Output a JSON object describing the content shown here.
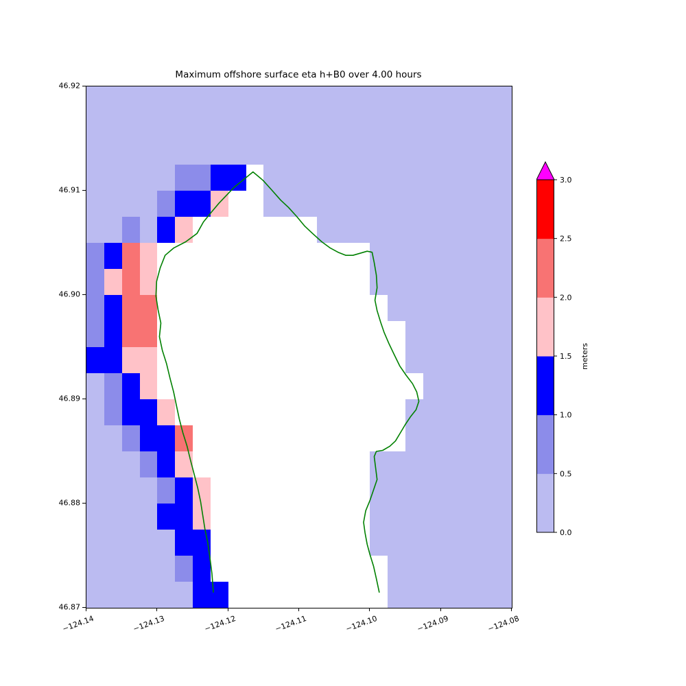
{
  "title": "Maximum offshore surface eta h+B0 over 4.00 hours",
  "chart_data": {
    "type": "heatmap",
    "x_range": [
      -124.14,
      -124.08
    ],
    "y_range": [
      46.87,
      46.92
    ],
    "cell_size_deg": 0.0025,
    "x_ticks": [
      "−124.14",
      "−124.13",
      "−124.12",
      "−124.11",
      "−124.10",
      "−124.09",
      "−124.08"
    ],
    "y_ticks": [
      "46.92",
      "46.91",
      "46.90",
      "46.89",
      "46.88",
      "46.87"
    ],
    "palette": {
      "0": "#bbbbf1",
      "1": "#8c8cea",
      "2": "#0000ff",
      "3": "#ffc2c8",
      "4": "#f87373",
      "5": "#ff0000",
      "W": "#ffffff"
    },
    "bins": [
      {
        "code": "0",
        "range": [
          0.0,
          0.5
        ],
        "color": "#bbbbf1"
      },
      {
        "code": "1",
        "range": [
          0.5,
          1.0
        ],
        "color": "#8c8cea"
      },
      {
        "code": "2",
        "range": [
          1.0,
          1.5
        ],
        "color": "#0000ff"
      },
      {
        "code": "3",
        "range": [
          1.5,
          2.0
        ],
        "color": "#ffc2c8"
      },
      {
        "code": "4",
        "range": [
          2.0,
          2.5
        ],
        "color": "#f87373"
      },
      {
        "code": "5",
        "range": [
          2.5,
          3.0
        ],
        "color": "#ff0000"
      },
      {
        "code": "W",
        "range": null,
        "color": "#ffffff",
        "meaning": "dry land / masked"
      }
    ],
    "grid_codes": [
      "000000000000000000000000",
      "000000000000000000000000",
      "000000000000000000000000",
      "000001122W00000000000000",
      "00001223WW00000000000000",
      "001023WWWWWWW00000000000",
      "1243WWWWWWWWWWWW00000000",
      "1343WWWWWWWWWWWW00000000",
      "1244WWWWWWWWWWWWW0000000",
      "1244WWWWWWWWWWWWWW000000",
      "2233WWWWWWWWWWWWWW000000",
      "0123WWWWWWWWWWWWWWW00000",
      "01223WWWWWWWWWWWWW000000",
      "001224WWWWWWWWWWWW000000",
      "000123WWWWWWWWWW00000000",
      "0000123WWWWWWWWW00000000",
      "0000223WWWWWWWWW00000000",
      "0000022WWWWWWWWW00000000",
      "0000012WWWWWWWWWW0000000",
      "00000022WWWWWWWWW0000000"
    ],
    "coastline_color": "#008000",
    "coastline": [
      [
        -124.1221,
        46.8715
      ],
      [
        -124.1223,
        46.8733
      ],
      [
        -124.1226,
        46.8749
      ],
      [
        -124.1229,
        46.8763
      ],
      [
        -124.1233,
        46.8776
      ],
      [
        -124.1236,
        46.8789
      ],
      [
        -124.1239,
        46.8802
      ],
      [
        -124.1243,
        46.8815
      ],
      [
        -124.1248,
        46.8828
      ],
      [
        -124.1253,
        46.8841
      ],
      [
        -124.1258,
        46.8855
      ],
      [
        -124.1264,
        46.8868
      ],
      [
        -124.1269,
        46.8881
      ],
      [
        -124.1273,
        46.8894
      ],
      [
        -124.1277,
        46.8907
      ],
      [
        -124.1282,
        46.892
      ],
      [
        -124.1287,
        46.8934
      ],
      [
        -124.1293,
        46.8947
      ],
      [
        -124.1297,
        46.896
      ],
      [
        -124.1295,
        46.8973
      ],
      [
        -124.1299,
        46.8986
      ],
      [
        -124.1302,
        46.8999
      ],
      [
        -124.1301,
        46.9013
      ],
      [
        -124.1296,
        46.9026
      ],
      [
        -124.1289,
        46.9038
      ],
      [
        -124.1277,
        46.9045
      ],
      [
        -124.126,
        46.9051
      ],
      [
        -124.1244,
        46.9059
      ],
      [
        -124.1235,
        46.907
      ],
      [
        -124.1223,
        46.908
      ],
      [
        -124.1213,
        46.9088
      ],
      [
        -124.1192,
        46.9103
      ],
      [
        -124.1165,
        46.9118
      ],
      [
        -124.1151,
        46.911
      ],
      [
        -124.1139,
        46.9101
      ],
      [
        -124.1126,
        46.9091
      ],
      [
        -124.1115,
        46.9084
      ],
      [
        -124.1103,
        46.9075
      ],
      [
        -124.1092,
        46.9066
      ],
      [
        -124.1081,
        46.9059
      ],
      [
        -124.1068,
        46.9051
      ],
      [
        -124.1056,
        46.9045
      ],
      [
        -124.1045,
        46.9041
      ],
      [
        -124.1034,
        46.9038
      ],
      [
        -124.1024,
        46.9038
      ],
      [
        -124.1014,
        46.904
      ],
      [
        -124.1004,
        46.9042
      ],
      [
        -124.0997,
        46.9041
      ],
      [
        -124.0994,
        46.9031
      ],
      [
        -124.0991,
        46.9019
      ],
      [
        -124.099,
        46.9007
      ],
      [
        -124.0993,
        46.8995
      ],
      [
        -124.099,
        46.8985
      ],
      [
        -124.0985,
        46.8974
      ],
      [
        -124.098,
        46.8964
      ],
      [
        -124.0973,
        46.8953
      ],
      [
        -124.0966,
        46.8943
      ],
      [
        -124.0958,
        46.8932
      ],
      [
        -124.0949,
        46.8923
      ],
      [
        -124.094,
        46.8915
      ],
      [
        -124.0934,
        46.8907
      ],
      [
        -124.0931,
        46.8898
      ],
      [
        -124.0935,
        46.889
      ],
      [
        -124.0943,
        46.8883
      ],
      [
        -124.095,
        46.8876
      ],
      [
        -124.0957,
        46.8868
      ],
      [
        -124.0964,
        46.886
      ],
      [
        -124.0972,
        46.8855
      ],
      [
        -124.0982,
        46.8851
      ],
      [
        -124.0991,
        46.885
      ],
      [
        -124.0994,
        46.8845
      ],
      [
        -124.0992,
        46.8834
      ],
      [
        -124.099,
        46.8823
      ],
      [
        -124.0995,
        46.8813
      ],
      [
        -124.1,
        46.8803
      ],
      [
        -124.1006,
        46.8793
      ],
      [
        -124.1009,
        46.8782
      ],
      [
        -124.1007,
        46.8772
      ],
      [
        -124.1004,
        46.8761
      ],
      [
        -124.1,
        46.8751
      ],
      [
        -124.0995,
        46.874
      ],
      [
        -124.0991,
        46.8728
      ],
      [
        -124.0987,
        46.8715
      ]
    ],
    "colorbar": {
      "label": "meters",
      "tick_labels_bottom_to_top": [
        "0.0",
        "0.5",
        "1.0",
        "1.5",
        "2.0",
        "2.5",
        "3.0"
      ],
      "segment_colors_bottom_to_top": [
        "#bbbbf1",
        "#8c8cea",
        "#0000ff",
        "#ffc2c8",
        "#f87373",
        "#ff0000"
      ],
      "over_color": "#ff00ff"
    },
    "legend_position": "right",
    "grid_lines": false
  }
}
